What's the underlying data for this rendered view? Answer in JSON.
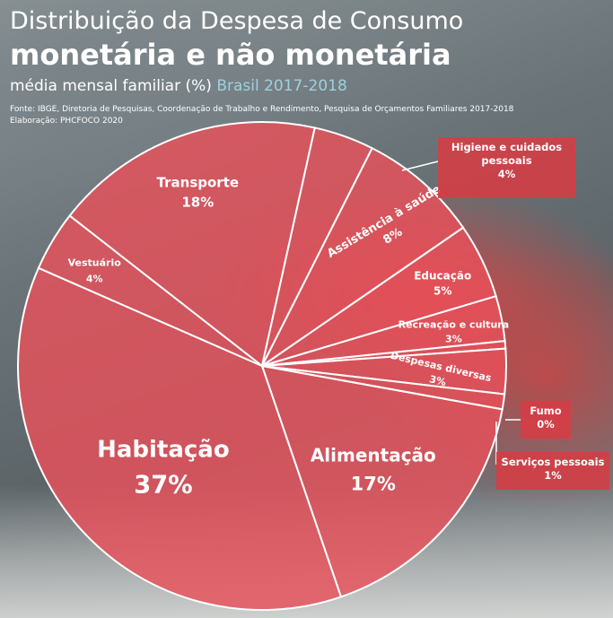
{
  "title_line1": "Distribuição da Despesa de Consumo",
  "title_line2": "monetária e não monetária",
  "subtitle_main": "média mensal familiar (%)",
  "subtitle_region": "Brasil 2017-2018",
  "source_line1": "Fonte: IBGE, Diretoria de Pesquisas, Coordenação de Trabalho e Rendimento, Pesquisa de Orçamentos Familiares 2017-2018",
  "source_line2": "Elaboração: PHCFOCO 2020",
  "colors": {
    "slice_fill": "#e8505a",
    "slice_stroke": "#ffffff",
    "callout_fill": "#d63c44"
  },
  "chart_data": {
    "type": "pie",
    "title": "Distribuição da Despesa de Consumo monetária e não monetária",
    "unit": "%",
    "slices": [
      {
        "label": "Transporte",
        "value": 18,
        "value_label": "18%"
      },
      {
        "label": "Higiene e cuidados pessoais",
        "value": 4,
        "value_label": "4%"
      },
      {
        "label": "Assistência à saúde",
        "value": 8,
        "value_label": "8%"
      },
      {
        "label": "Educação",
        "value": 5,
        "value_label": "5%"
      },
      {
        "label": "Recreação e cultura",
        "value": 3,
        "value_label": "3%"
      },
      {
        "label": "Fumo",
        "value": 0.5,
        "value_label": "0%"
      },
      {
        "label": "Despesas diversas",
        "value": 3,
        "value_label": "3%"
      },
      {
        "label": "Serviços pessoais",
        "value": 1,
        "value_label": "1%"
      },
      {
        "label": "Alimentação",
        "value": 17,
        "value_label": "17%"
      },
      {
        "label": "Habitação",
        "value": 37,
        "value_label": "37%"
      },
      {
        "label": "Vestuário",
        "value": 4,
        "value_label": "4%"
      }
    ]
  }
}
